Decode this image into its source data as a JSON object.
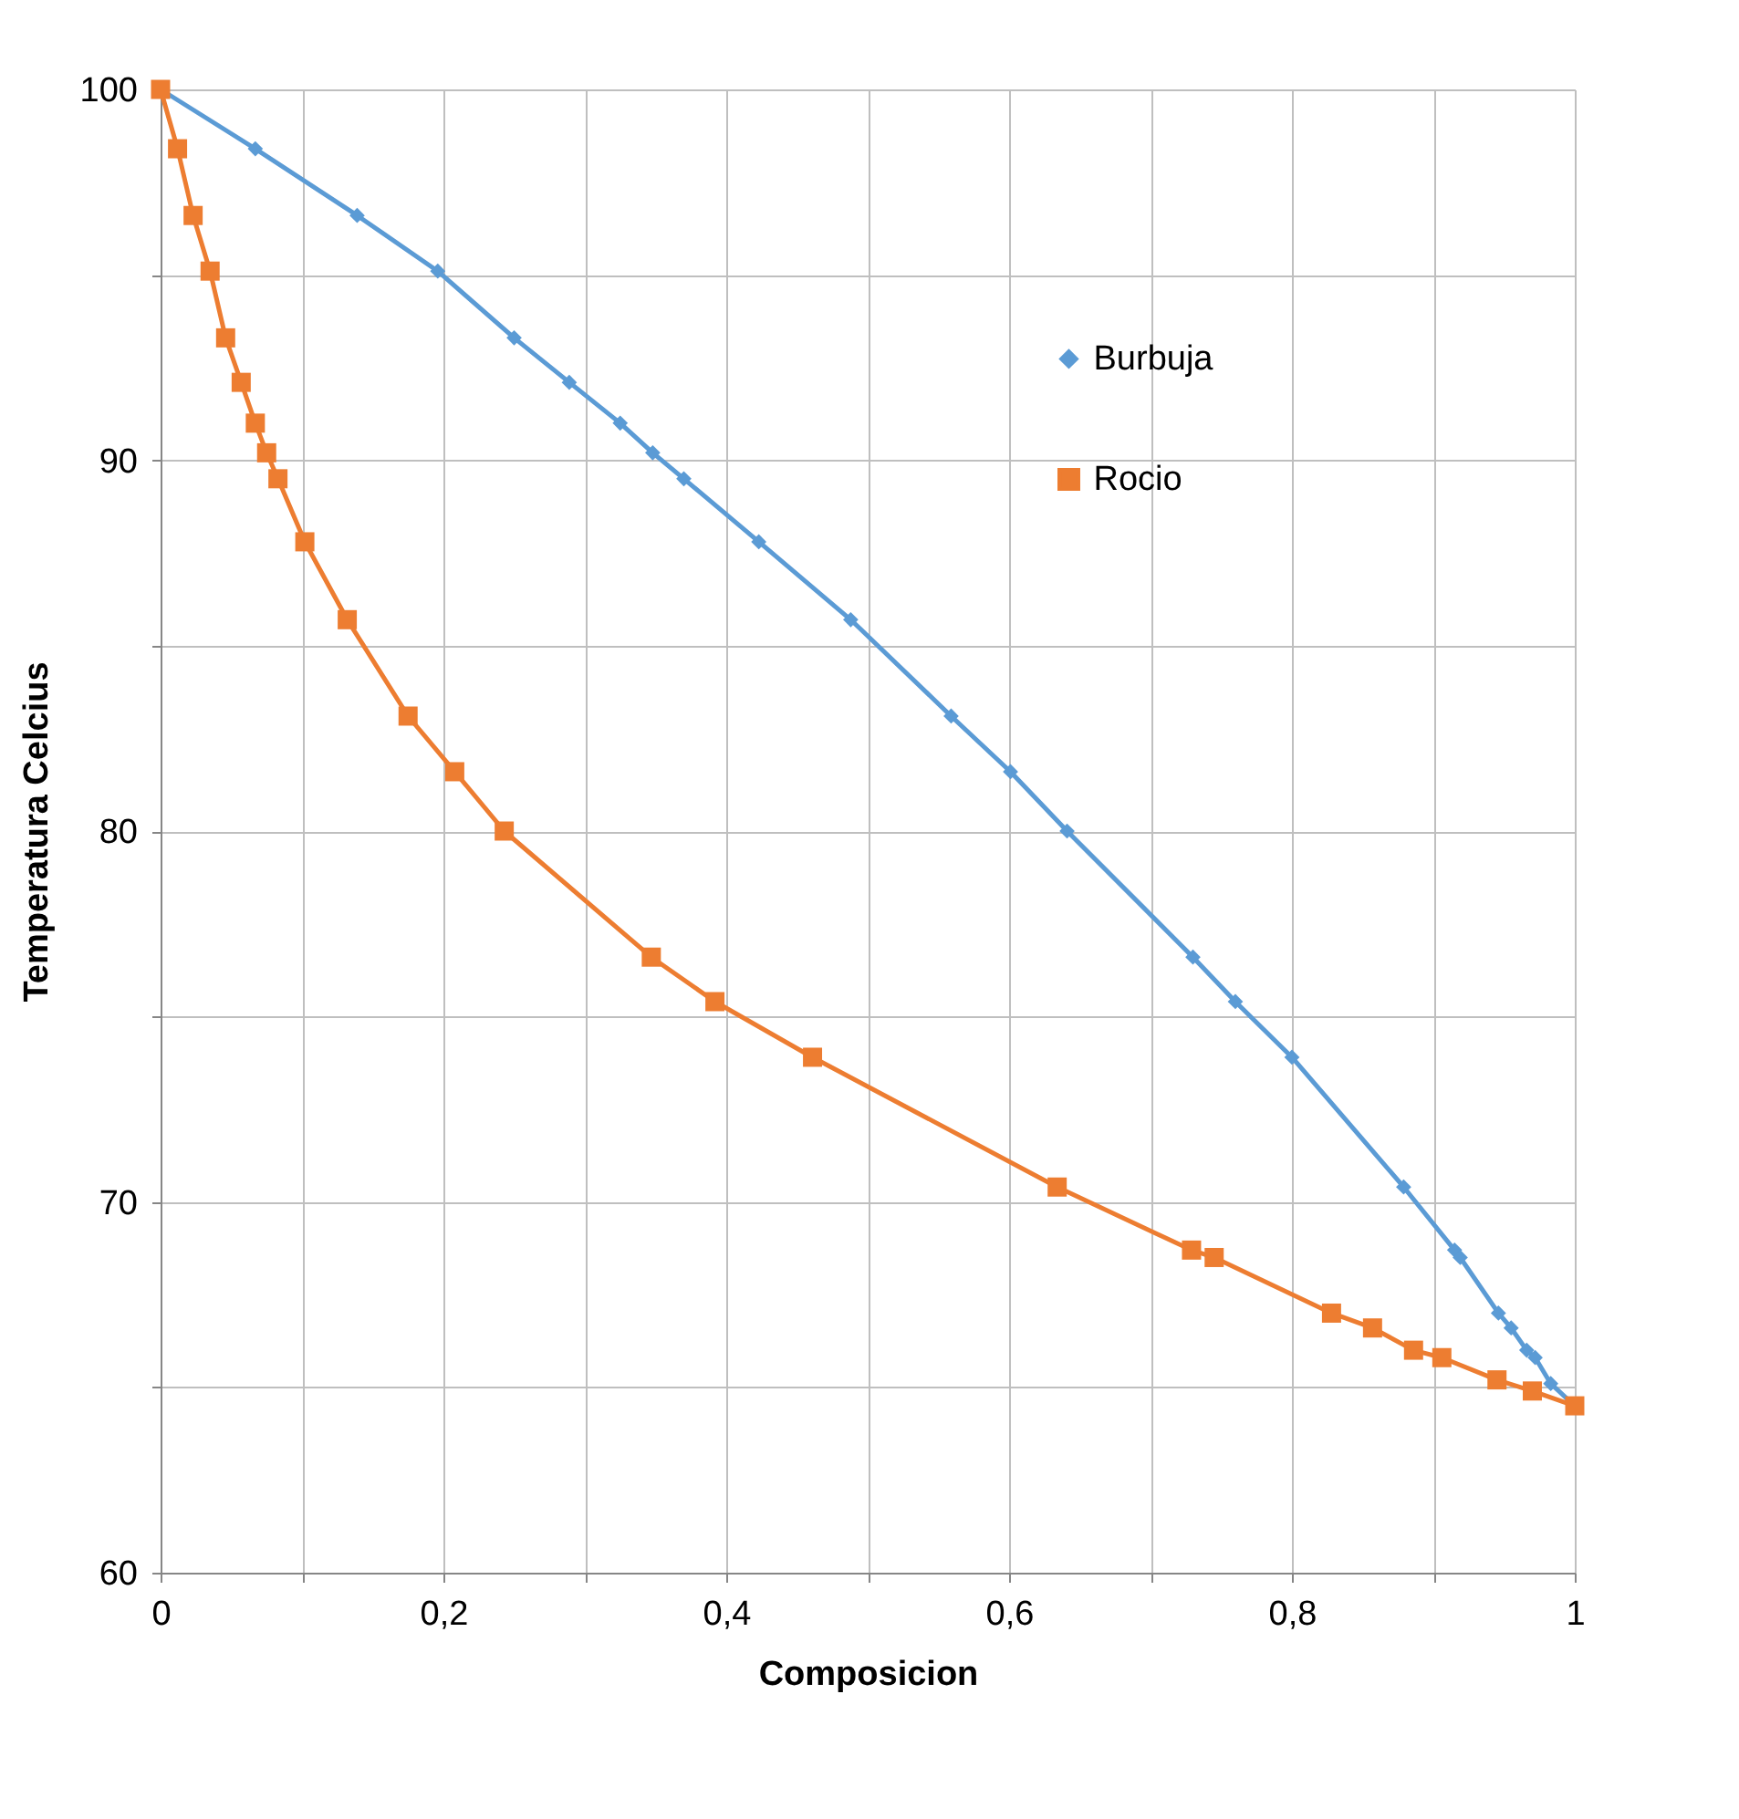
{
  "chart_data": {
    "type": "line",
    "xlabel": "Composicion",
    "ylabel": "Temperatura Celcius",
    "xlim": [
      0,
      1
    ],
    "ylim": [
      60,
      100
    ],
    "xticks": [
      0,
      {
        "value": 0.1,
        "label": null
      },
      {
        "value": 0.2,
        "label": "0,2"
      },
      {
        "value": 0.3,
        "label": null
      },
      {
        "value": 0.4,
        "label": "0,4"
      },
      {
        "value": 0.5,
        "label": null
      },
      {
        "value": 0.6,
        "label": "0,6"
      },
      {
        "value": 0.7,
        "label": null
      },
      {
        "value": 0.8,
        "label": "0,8"
      },
      {
        "value": 0.9,
        "label": null
      },
      1
    ],
    "yticks": [
      60,
      {
        "value": 65,
        "label": null
      },
      70,
      {
        "value": 75,
        "label": null
      },
      80,
      {
        "value": 85,
        "label": null
      },
      90,
      {
        "value": 95,
        "label": null
      },
      100
    ],
    "grid": true,
    "legend": "right",
    "line_style": "solid",
    "series": [
      {
        "name": "Burbuja",
        "color": "#5b9bd5",
        "marker": "diamond",
        "x": [
          0,
          0.067,
          0.139,
          0.196,
          0.25,
          0.289,
          0.325,
          0.348,
          0.37,
          0.423,
          0.488,
          0.559,
          0.601,
          0.641,
          0.73,
          0.76,
          0.8,
          0.879,
          0.915,
          0.919,
          0.946,
          0.955,
          0.966,
          0.972,
          0.983,
          1
        ],
        "values": [
          100,
          98.4,
          96.6,
          95.1,
          93.3,
          92.1,
          91.0,
          90.2,
          89.5,
          87.8,
          85.7,
          83.1,
          81.6,
          80.0,
          76.6,
          75.4,
          73.9,
          70.4,
          68.7,
          68.5,
          67.0,
          66.6,
          66.0,
          65.8,
          65.1,
          64.5
        ]
      },
      {
        "name": "Rocio",
        "color": "#ed7d31",
        "marker": "square",
        "x": [
          0,
          0.012,
          0.023,
          0.035,
          0.046,
          0.057,
          0.067,
          0.075,
          0.083,
          0.102,
          0.132,
          0.175,
          0.208,
          0.243,
          0.347,
          0.392,
          0.461,
          0.634,
          0.729,
          0.745,
          0.828,
          0.857,
          0.886,
          0.906,
          0.945,
          0.97,
          1
        ],
        "values": [
          100,
          98.4,
          96.6,
          95.1,
          93.3,
          92.1,
          91.0,
          90.2,
          89.5,
          87.8,
          85.7,
          83.1,
          81.6,
          80.0,
          76.6,
          75.4,
          73.9,
          70.4,
          68.7,
          68.5,
          67.0,
          66.6,
          66.0,
          65.8,
          65.2,
          64.9,
          64.5
        ]
      }
    ]
  }
}
